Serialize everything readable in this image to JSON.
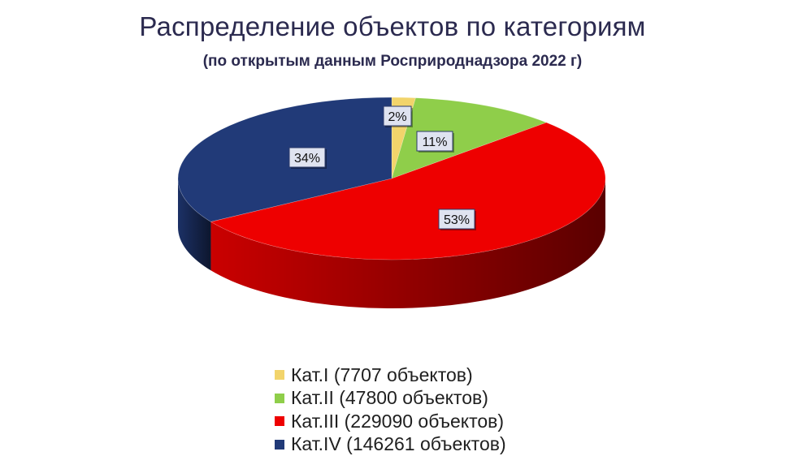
{
  "title": "Распределение объектов по категориям",
  "subtitle": "(по открытым данным Росприроднадзора 2022 г)",
  "chart_data": {
    "type": "pie",
    "style": "3d",
    "legend_position": "bottom",
    "slices": [
      {
        "label": "Кат.I (7707 объектов)",
        "value": 7707,
        "percent_label": "2%",
        "color": "#f2d46b"
      },
      {
        "label": "Кат.II (47800 объектов)",
        "value": 47800,
        "percent_label": "11%",
        "color": "#8fce4a"
      },
      {
        "label": "Кат.III (229090 объектов)",
        "value": 229090,
        "percent_label": "53%",
        "color": "#ee0000"
      },
      {
        "label": "Кат.IV (146261 объектов)",
        "value": 146261,
        "percent_label": "34%",
        "color": "#213a78"
      }
    ]
  }
}
